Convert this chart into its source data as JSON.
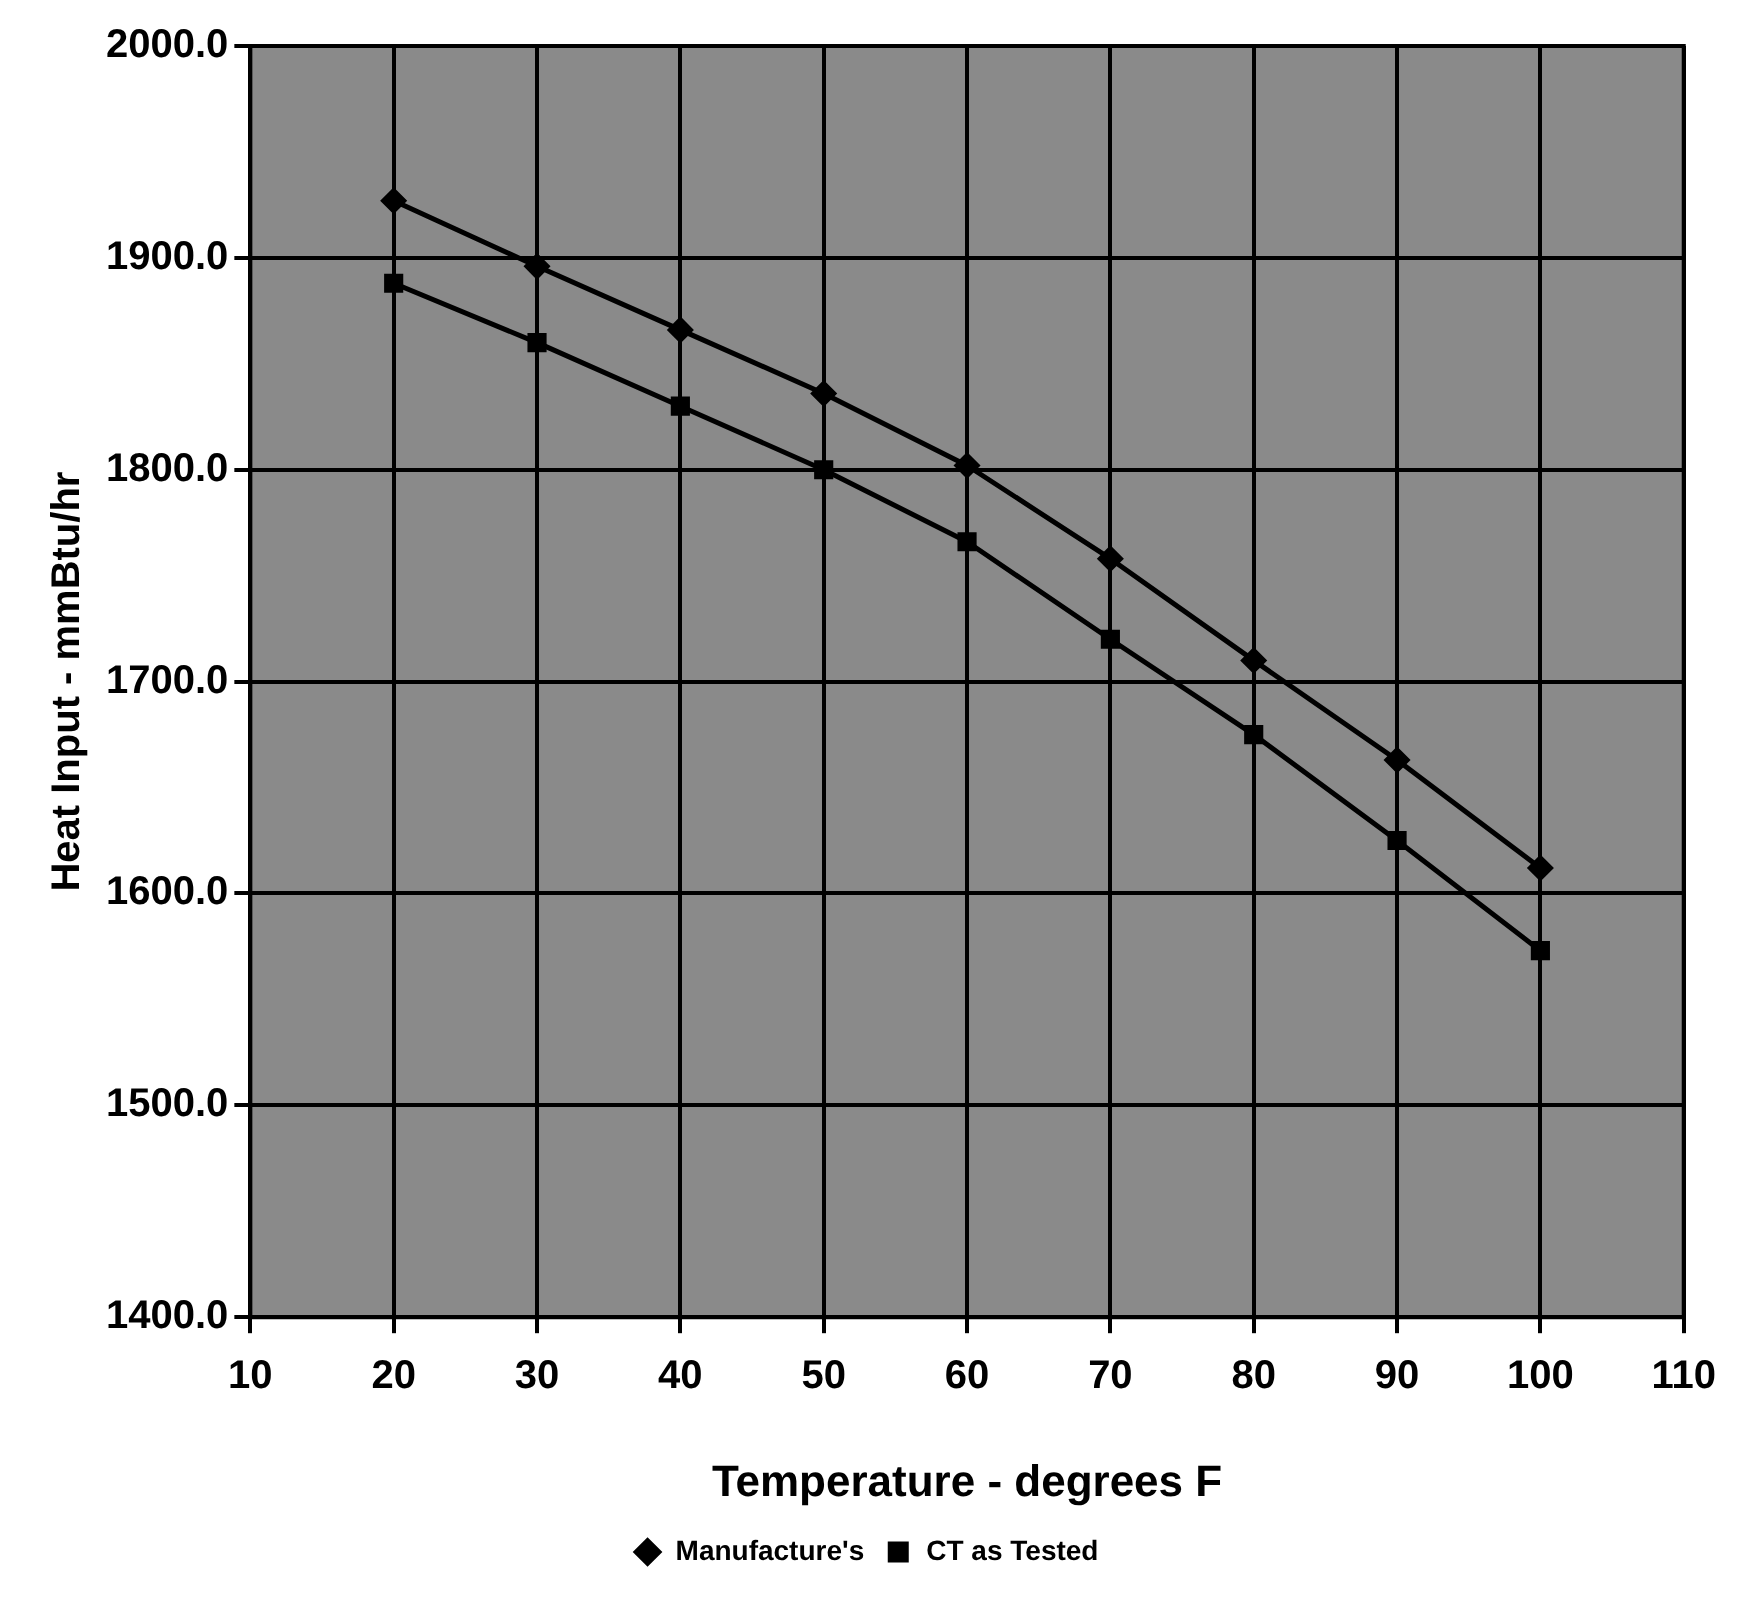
{
  "chart_data": {
    "type": "line",
    "xlabel": "Temperature - degrees F",
    "ylabel": "Heat Input - mmBtu/hr",
    "x": [
      20,
      30,
      40,
      50,
      60,
      70,
      80,
      90,
      100
    ],
    "series": [
      {
        "name": "Manufacture's",
        "color": "#000000",
        "marker": "diamond",
        "values": [
          1927,
          1896,
          1866,
          1836,
          1802,
          1758,
          1710,
          1663,
          1612
        ]
      },
      {
        "name": "CT as Tested",
        "color": "#000000",
        "marker": "square",
        "values": [
          1888,
          1860,
          1830,
          1800,
          1766,
          1720,
          1675,
          1625,
          1573
        ]
      }
    ],
    "xlim": [
      10,
      110
    ],
    "xticks": [
      10,
      20,
      30,
      40,
      50,
      60,
      70,
      80,
      90,
      100,
      110
    ],
    "ylim": [
      1400,
      2000
    ],
    "yticks": [
      {
        "value": 1400,
        "label": "1400.0"
      },
      {
        "value": 1500,
        "label": "1500.0"
      },
      {
        "value": 1600,
        "label": "1600.0"
      },
      {
        "value": 1700,
        "label": "1700.0"
      },
      {
        "value": 1800,
        "label": "1800.0"
      },
      {
        "value": 1900,
        "label": "1900.0"
      },
      {
        "value": 2000,
        "label": "2000.0"
      }
    ],
    "grid": true,
    "legend": "bottom",
    "line_style": "solid"
  }
}
